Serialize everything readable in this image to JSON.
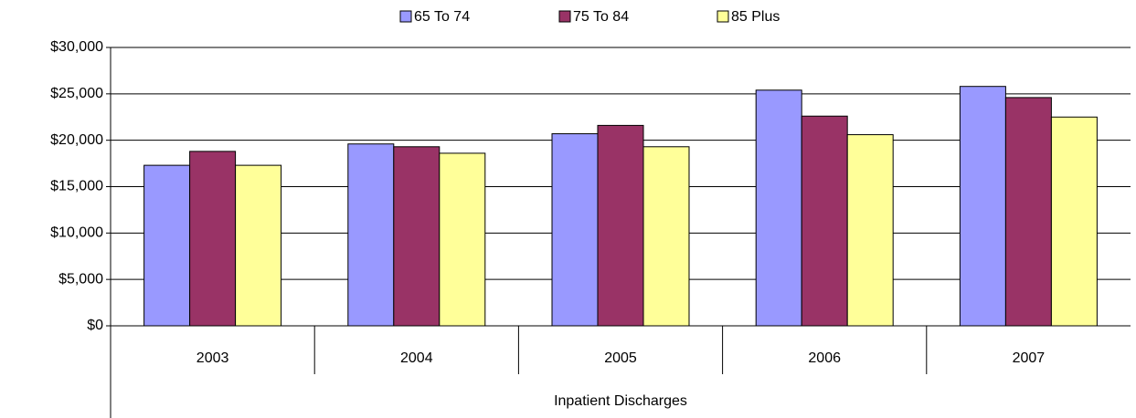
{
  "chart_data": {
    "type": "bar",
    "categories": [
      "2003",
      "2004",
      "2005",
      "2006",
      "2007"
    ],
    "series": [
      {
        "name": "65 To 74",
        "color": "#9999ff",
        "values": [
          17300,
          19600,
          20700,
          25400,
          25800
        ]
      },
      {
        "name": "75 To 84",
        "color": "#993366",
        "values": [
          18800,
          19300,
          21600,
          22600,
          24600
        ]
      },
      {
        "name": "85 Plus",
        "color": "#ffff99",
        "values": [
          17300,
          18600,
          19300,
          20600,
          22500
        ]
      }
    ],
    "xlabel": "Inpatient Discharges",
    "ylim": [
      0,
      30000
    ],
    "yticks": [
      {
        "value": 0,
        "label": "$0"
      },
      {
        "value": 5000,
        "label": "$5,000"
      },
      {
        "value": 10000,
        "label": "$10,000"
      },
      {
        "value": 15000,
        "label": "$15,000"
      },
      {
        "value": 20000,
        "label": "$20,000"
      },
      {
        "value": 25000,
        "label": "$25,000"
      },
      {
        "value": 30000,
        "label": "$30,000"
      }
    ],
    "grid": true,
    "legend": "top"
  }
}
